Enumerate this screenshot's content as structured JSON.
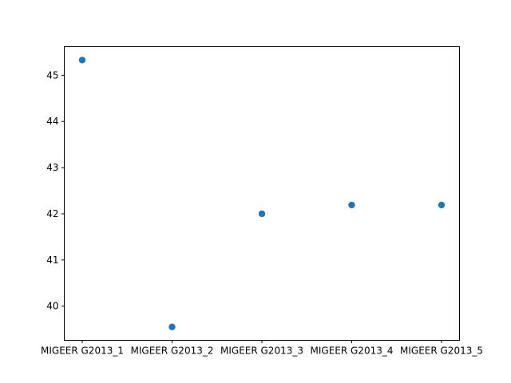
{
  "chart_data": {
    "type": "scatter",
    "categories": [
      "MIGEER G2013_1",
      "MIGEER G2013_2",
      "MIGEER G2013_3",
      "MIGEER G2013_4",
      "MIGEER G2013_5"
    ],
    "values": [
      45.33,
      39.55,
      42.0,
      42.19,
      42.19
    ],
    "y_ticks": [
      40,
      41,
      42,
      43,
      44,
      45
    ],
    "ylim": [
      39.26,
      45.62
    ],
    "grid": false,
    "marker_color": "#1f77b4"
  }
}
